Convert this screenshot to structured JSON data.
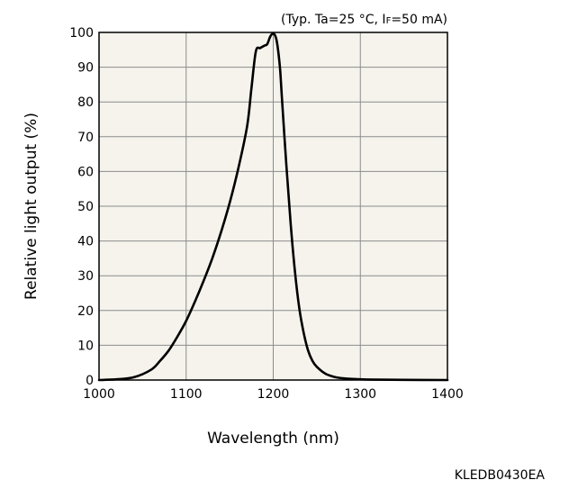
{
  "chart_data": {
    "type": "line",
    "condition": {
      "prefix": "(Typ. Ta=25 °C, ",
      "current_symbol": "I",
      "current_subscript": "F",
      "suffix": "=50 mA)"
    },
    "xlabel": "Wavelength (nm)",
    "ylabel": "Relative light output (%)",
    "xlim": [
      1000,
      1400
    ],
    "ylim": [
      0,
      100
    ],
    "x_ticks": [
      "1000",
      "1100",
      "1200",
      "1300",
      "1400"
    ],
    "y_ticks": [
      "0",
      "10",
      "20",
      "30",
      "40",
      "50",
      "60",
      "70",
      "80",
      "90",
      "100"
    ],
    "grid": true,
    "series": [
      {
        "x": [
          1000,
          1020,
          1040,
          1060,
          1070,
          1080,
          1090,
          1100,
          1110,
          1120,
          1130,
          1140,
          1150,
          1160,
          1170,
          1175,
          1180,
          1185,
          1190,
          1193,
          1196,
          1198,
          1200,
          1202,
          1204,
          1206,
          1208,
          1210,
          1215,
          1220,
          1225,
          1230,
          1235,
          1240,
          1245,
          1250,
          1260,
          1270,
          1280,
          1300,
          1320,
          1350,
          1400
        ],
        "y": [
          0,
          0.2,
          0.8,
          3,
          5.5,
          8.5,
          12.5,
          17,
          22.5,
          28.5,
          35,
          42.5,
          51,
          61,
          73,
          84,
          94.5,
          95.5,
          96.2,
          96.6,
          98.5,
          99.4,
          99.6,
          99.2,
          97.5,
          94,
          89,
          81,
          62,
          45,
          31,
          20.5,
          13.5,
          8.5,
          5.5,
          3.8,
          1.8,
          0.9,
          0.5,
          0.2,
          0.1,
          0.05,
          0
        ]
      }
    ]
  },
  "figure_code": "KLEDB0430EA",
  "colors": {
    "plot_background": "#f5f3ec",
    "grid": "#8c8c8c",
    "curve": "#000000"
  }
}
